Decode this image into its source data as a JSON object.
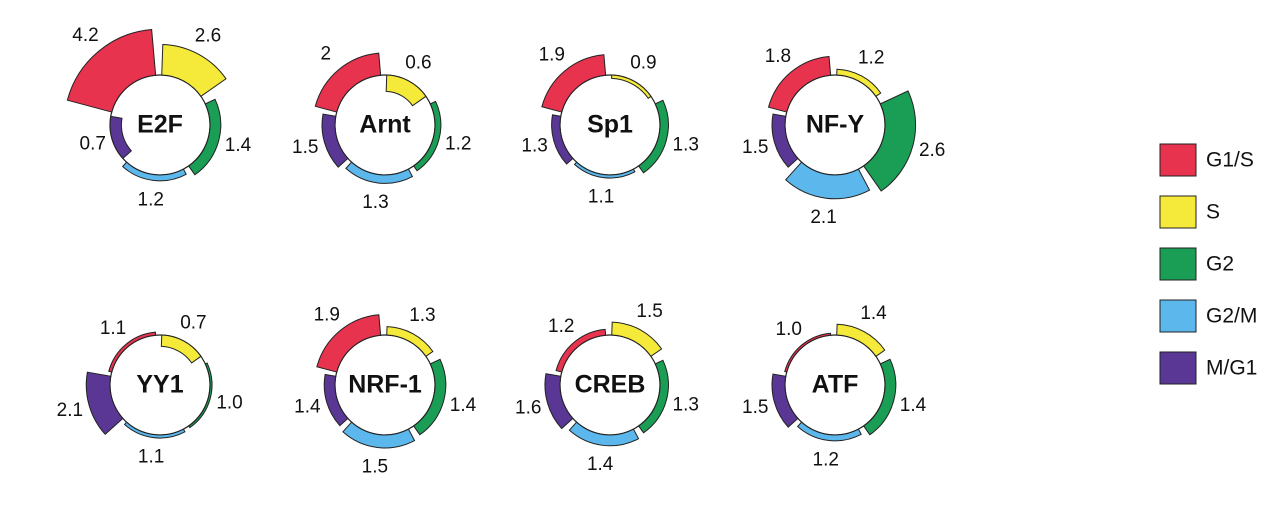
{
  "chart_data": {
    "type": "polar-bar",
    "categories": [
      "G1/S",
      "S",
      "G2",
      "G2/M",
      "M/G1"
    ],
    "colors": [
      "#e8334f",
      "#f5ea3a",
      "#1a9e55",
      "#5cb8ec",
      "#5a3795"
    ],
    "series": [
      {
        "name": "E2F",
        "values": [
          4.2,
          2.6,
          1.4,
          1.2,
          0.7
        ]
      },
      {
        "name": "Arnt",
        "values": [
          2,
          0.6,
          1.2,
          1.3,
          1.5
        ]
      },
      {
        "name": "Sp1",
        "values": [
          1.9,
          0.9,
          1.3,
          1.1,
          1.3
        ]
      },
      {
        "name": "NF-Y",
        "values": [
          1.8,
          1.2,
          2.6,
          2.1,
          1.5
        ]
      },
      {
        "name": "YY1",
        "values": [
          1.1,
          0.7,
          1.0,
          1.1,
          2.1
        ],
        "value_labels": [
          "1.1",
          "0.7",
          "1.0",
          "1.1",
          "2.1"
        ]
      },
      {
        "name": "NRF-1",
        "values": [
          1.9,
          1.3,
          1.4,
          1.5,
          1.4
        ]
      },
      {
        "name": "CREB",
        "values": [
          1.2,
          1.5,
          1.3,
          1.4,
          1.6
        ]
      },
      {
        "name": "ATF",
        "values": [
          1.0,
          1.4,
          1.4,
          1.2,
          1.5
        ],
        "value_labels": [
          "1.0",
          "1.4",
          "1.4",
          "1.2",
          "1.5"
        ]
      }
    ]
  }
}
